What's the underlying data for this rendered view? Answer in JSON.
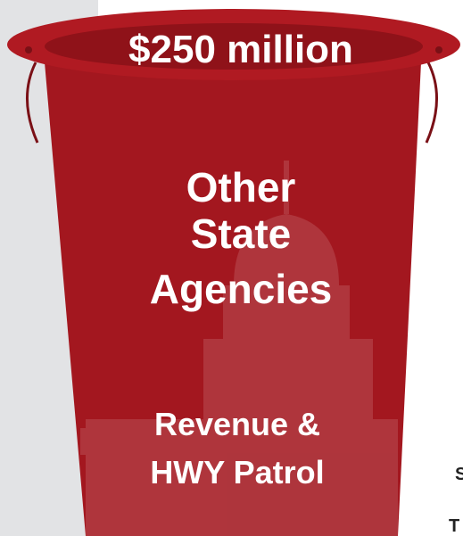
{
  "header": {
    "amount": "$250 million"
  },
  "bucket": {
    "title_lines": [
      "Other",
      "State",
      "Agencies"
    ],
    "subtitle_lines": [
      "Revenue &",
      "HWY Patrol"
    ]
  },
  "edge_text": [
    "S",
    "T"
  ]
}
